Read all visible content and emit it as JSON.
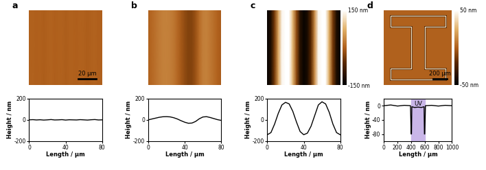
{
  "chart_data": [
    {
      "type": "line",
      "panel_label": "a",
      "color": "#000000",
      "x": [
        0,
        4,
        8,
        12,
        16,
        20,
        24,
        28,
        32,
        36,
        40,
        44,
        48,
        52,
        56,
        60,
        64,
        68,
        72,
        76,
        80
      ],
      "values": [
        0,
        2,
        -1,
        1,
        -2,
        0,
        3,
        -1,
        0,
        2,
        -2,
        1,
        0,
        -1,
        2,
        0,
        -2,
        1,
        3,
        -1,
        0
      ],
      "xlim": [
        0,
        80
      ],
      "xticks": [
        0,
        40,
        80
      ],
      "ylim": [
        -200,
        200
      ],
      "yticks": [
        -200,
        0,
        200
      ],
      "x_label": "Length / µm",
      "y_label": "Height / nm",
      "image": {
        "xlim": [
          0,
          80
        ],
        "ylim": [
          0,
          80
        ],
        "range": [
          -150,
          150
        ],
        "scale_bar": {
          "value": 20,
          "label": "20 µm"
        }
      }
    },
    {
      "type": "line",
      "panel_label": "b",
      "color": "#000000",
      "x": [
        0,
        4,
        8,
        12,
        16,
        20,
        24,
        28,
        32,
        36,
        40,
        44,
        48,
        52,
        56,
        60,
        64,
        68,
        72,
        76,
        80
      ],
      "values": [
        0,
        8,
        16,
        24,
        29,
        30,
        28,
        20,
        8,
        -8,
        -22,
        -32,
        -30,
        -15,
        10,
        27,
        30,
        22,
        12,
        2,
        -5
      ],
      "xlim": [
        0,
        80
      ],
      "xticks": [
        0,
        40,
        80
      ],
      "ylim": [
        -200,
        200
      ],
      "yticks": [
        -200,
        0,
        200
      ],
      "x_label": "Length / µm",
      "y_label": "Height / nm",
      "image": {
        "xlim": [
          0,
          80
        ],
        "ylim": [
          0,
          80
        ],
        "range": [
          -150,
          150
        ]
      }
    },
    {
      "type": "line",
      "panel_label": "c",
      "color": "#000000",
      "x": [
        0,
        4,
        8,
        12,
        16,
        20,
        24,
        28,
        32,
        36,
        40,
        44,
        48,
        52,
        56,
        60,
        64,
        68,
        72,
        76,
        80
      ],
      "values": [
        -140,
        -120,
        -40,
        60,
        140,
        165,
        150,
        80,
        -20,
        -110,
        -140,
        -125,
        -60,
        40,
        140,
        170,
        150,
        70,
        -40,
        -120,
        -140
      ],
      "xlim": [
        0,
        80
      ],
      "xticks": [
        0,
        40,
        80
      ],
      "ylim": [
        -200,
        200
      ],
      "yticks": [
        -200,
        0,
        200
      ],
      "x_label": "Length / µm",
      "y_label": "Height / nm",
      "image": {
        "xlim": [
          0,
          80
        ],
        "ylim": [
          0,
          80
        ],
        "range": [
          -150,
          150
        ],
        "colorbar_ticks": [
          {
            "value": 150,
            "label": "150 nm"
          },
          {
            "value": -150,
            "label": "-150 nm"
          }
        ]
      }
    },
    {
      "type": "line",
      "panel_label": "d",
      "color": "#000000",
      "x": [
        0,
        100,
        200,
        300,
        390,
        400,
        405,
        410,
        450,
        500,
        550,
        590,
        595,
        600,
        610,
        700,
        800,
        900,
        1000
      ],
      "values": [
        0,
        2,
        -1,
        1,
        0,
        -80,
        -80,
        -3,
        -5,
        -4,
        -5,
        -3,
        -80,
        -80,
        0,
        1,
        -1,
        1,
        0
      ],
      "xlim": [
        0,
        1000
      ],
      "xticks": [
        0,
        200,
        400,
        600,
        800,
        1000
      ],
      "ylim": [
        -100,
        20
      ],
      "yticks": [
        -80,
        -40,
        0
      ],
      "x_label": "Length / µm",
      "y_label": "Height / nm",
      "uv_band": {
        "range": [
          400,
          600
        ],
        "label": "UV"
      },
      "image": {
        "xlim": [
          0,
          1000
        ],
        "ylim": [
          0,
          1000
        ],
        "range": [
          -50,
          50
        ],
        "scale_bar": {
          "value": 200,
          "label": "200 µm"
        },
        "colorbar_ticks": [
          {
            "value": 50,
            "label": "50 nm"
          },
          {
            "value": -50,
            "label": "-50 nm"
          }
        ]
      }
    }
  ]
}
